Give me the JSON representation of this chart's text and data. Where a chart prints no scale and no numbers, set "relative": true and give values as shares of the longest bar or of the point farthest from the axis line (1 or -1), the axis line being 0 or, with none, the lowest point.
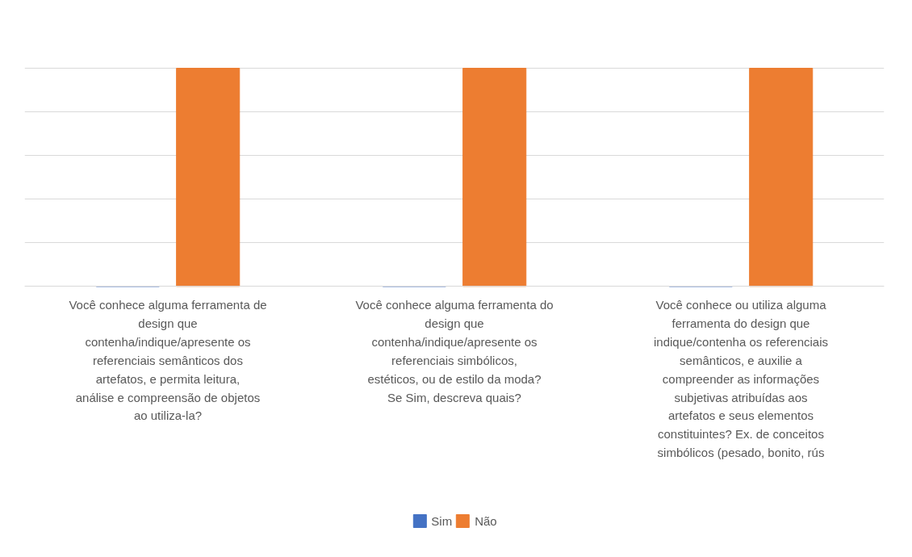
{
  "chart_data": {
    "type": "bar",
    "relative": true,
    "categories": [
      "Você conhece alguma ferramenta de design que contenha/indique/apresente os referenciais semânticos dos artefatos, e permita leitura, análise e compreensão de objetos ao utiliza-la?",
      "Você conhece alguma ferramenta do design que contenha/indique/apresente os referenciais simbólicos, estéticos, ou de estilo da moda? Se Sim, descreva quais?",
      "Você conhece ou utiliza alguma ferramenta do design que indique/contenha os referenciais semânticos, e auxilie a compreender as informações subjetivas atribuídas aos artefatos e seus elementos constituintes? Ex. de conceitos simbólicos (pesado, bonito, rús"
    ],
    "series": [
      {
        "name": "Sim",
        "color": "#4472c4",
        "values": [
          0,
          0,
          0
        ]
      },
      {
        "name": "Não",
        "color": "#ed7d31",
        "values": [
          1,
          1,
          1
        ]
      }
    ],
    "grid": "y",
    "legend": "bottom"
  }
}
